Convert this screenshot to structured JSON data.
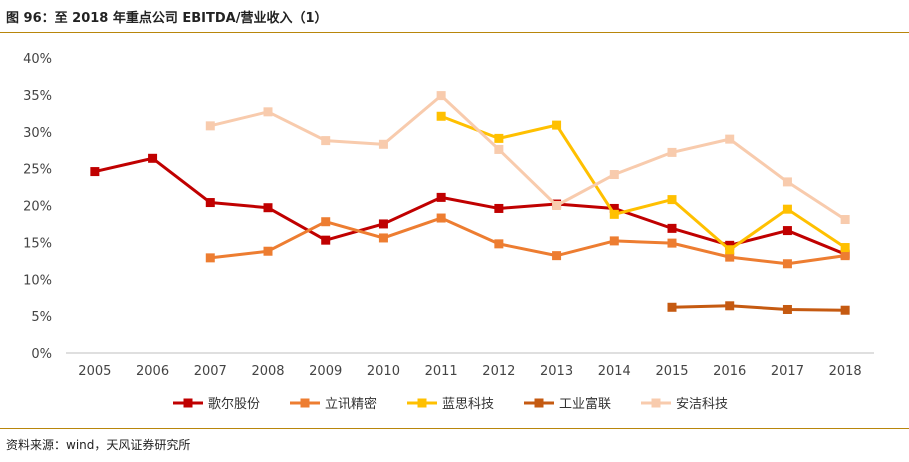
{
  "header": {
    "title": "图 96：至 2018 年重点公司 EBITDA/营业收入（1）"
  },
  "footer": {
    "source": "资料来源：wind，天风证券研究所"
  },
  "chart_data": {
    "type": "line",
    "x": [
      "2005",
      "2006",
      "2007",
      "2008",
      "2009",
      "2010",
      "2011",
      "2012",
      "2013",
      "2014",
      "2015",
      "2016",
      "2017",
      "2018"
    ],
    "ylim": [
      0,
      40
    ],
    "yticks": [
      0,
      5,
      10,
      15,
      20,
      25,
      30,
      35,
      40
    ],
    "ytick_labels": [
      "0%",
      "5%",
      "10%",
      "15%",
      "20%",
      "25%",
      "30%",
      "35%",
      "40%"
    ],
    "grid": false,
    "legend": "bottom",
    "series": [
      {
        "name": "歌尔股份",
        "color": "#c00000",
        "values": [
          24.6,
          26.4,
          20.4,
          19.7,
          15.3,
          17.5,
          21.1,
          19.6,
          20.2,
          19.6,
          16.9,
          14.6,
          16.6,
          13.4
        ]
      },
      {
        "name": "立讯精密",
        "color": "#ed7d31",
        "values": [
          null,
          null,
          12.9,
          13.8,
          17.8,
          15.6,
          18.3,
          14.8,
          13.2,
          15.2,
          14.9,
          13.0,
          12.1,
          13.2
        ]
      },
      {
        "name": "蓝思科技",
        "color": "#ffc000",
        "values": [
          null,
          null,
          null,
          null,
          null,
          null,
          32.1,
          29.1,
          30.9,
          18.8,
          20.8,
          14.0,
          19.5,
          14.3
        ]
      },
      {
        "name": "工业富联",
        "color": "#c55a11",
        "values": [
          null,
          null,
          null,
          null,
          null,
          null,
          null,
          null,
          null,
          null,
          6.2,
          6.4,
          5.9,
          5.8
        ]
      },
      {
        "name": "安洁科技",
        "color": "#f8cbad",
        "values": [
          null,
          null,
          30.8,
          32.7,
          28.8,
          28.3,
          34.9,
          27.6,
          20.0,
          24.2,
          27.2,
          29.0,
          23.2,
          18.1
        ]
      }
    ]
  }
}
